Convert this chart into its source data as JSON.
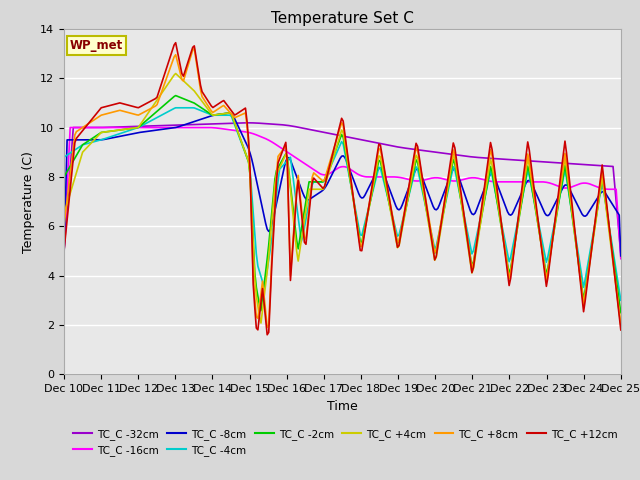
{
  "title": "Temperature Set C",
  "xlabel": "Time",
  "ylabel": "Temperature (C)",
  "ylim": [
    0,
    14
  ],
  "x_tick_labels": [
    "Dec 10",
    "Dec 11",
    "Dec 12",
    "Dec 13",
    "Dec 14",
    "Dec 15",
    "Dec 16",
    "Dec 17",
    "Dec 18",
    "Dec 19",
    "Dec 20",
    "Dec 21",
    "Dec 22",
    "Dec 23",
    "Dec 24",
    "Dec 25"
  ],
  "wp_met_label": "WP_met",
  "legend_entries": [
    {
      "label": "TC_C -32cm",
      "color": "#9900cc"
    },
    {
      "label": "TC_C -16cm",
      "color": "#ff00ff"
    },
    {
      "label": "TC_C -8cm",
      "color": "#0000cc"
    },
    {
      "label": "TC_C -4cm",
      "color": "#00cccc"
    },
    {
      "label": "TC_C -2cm",
      "color": "#00cc00"
    },
    {
      "label": "TC_C +4cm",
      "color": "#cccc00"
    },
    {
      "label": "TC_C +8cm",
      "color": "#ff9900"
    },
    {
      "label": "TC_C +12cm",
      "color": "#cc0000"
    }
  ],
  "fig_facecolor": "#d8d8d8",
  "ax_facecolor": "#e8e8e8",
  "title_fontsize": 11,
  "label_fontsize": 9,
  "tick_fontsize": 8,
  "legend_fontsize": 8,
  "linewidth": 1.2
}
